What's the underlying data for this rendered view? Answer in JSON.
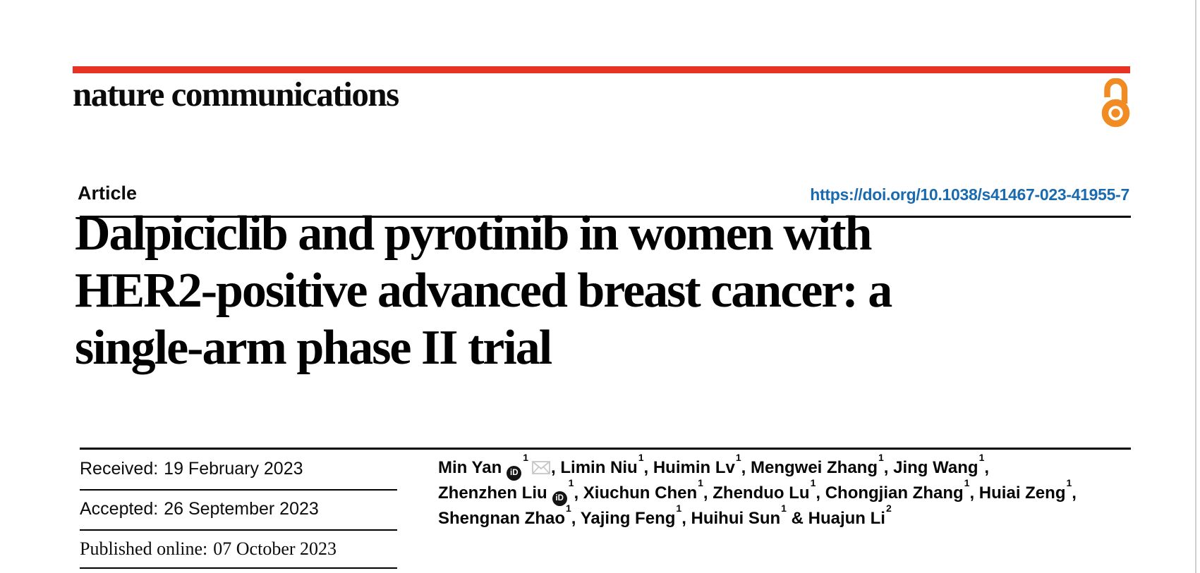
{
  "page": {
    "background": "#ffffff",
    "right_edge_color": "#cfcfcf"
  },
  "masthead": {
    "bar_color": "#e63323",
    "journal_name": "nature communications",
    "open_access_color": "#f08c23"
  },
  "article_header": {
    "type_label": "Article",
    "doi_link": {
      "text": "https://doi.org/10.1038/s41467-023-41955-7",
      "color": "#1a6ab0"
    }
  },
  "title": {
    "lines": [
      "Dalpiciclib and pyrotinib in women with",
      "HER2-positive advanced breast cancer: a",
      "single-arm phase II trial"
    ]
  },
  "history": {
    "received": {
      "label": "Received:",
      "value": "19 February 2023"
    },
    "accepted": {
      "label": "Accepted:",
      "value": "26 September 2023"
    },
    "published_online": {
      "label": "Published online:",
      "value": "07 October 2023"
    }
  },
  "authors": {
    "orcid_badge_text": "iD",
    "lines": [
      {
        "segments": [
          {
            "text": "Min Yan",
            "orcid": true,
            "sup": "1",
            "email": true
          },
          {
            "text": ", Limin Niu",
            "sup": "1"
          },
          {
            "text": ", Huimin Lv",
            "sup": "1"
          },
          {
            "text": ", Mengwei Zhang",
            "sup": "1"
          },
          {
            "text": ", Jing Wang",
            "sup": "1"
          },
          {
            "text": ","
          }
        ]
      },
      {
        "segments": [
          {
            "text": "Zhenzhen Liu",
            "orcid": true,
            "sup": "1"
          },
          {
            "text": ", Xiuchun Chen",
            "sup": "1"
          },
          {
            "text": ", Zhenduo Lu",
            "sup": "1"
          },
          {
            "text": ", Chongjian Zhang",
            "sup": "1"
          },
          {
            "text": ", Huiai Zeng",
            "sup": "1"
          },
          {
            "text": ","
          }
        ]
      },
      {
        "segments": [
          {
            "text": "Shengnan Zhao",
            "sup": "1"
          },
          {
            "text": ", Yajing Feng",
            "sup": "1"
          },
          {
            "text": ", Huihui Sun",
            "sup": "1"
          },
          {
            "text": " & Huajun Li",
            "sup": "2"
          }
        ]
      }
    ]
  }
}
